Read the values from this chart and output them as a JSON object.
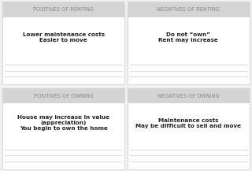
{
  "bg_color": "#f0f0f0",
  "cell_bg": "#ffffff",
  "header_bg": "#d4d4d4",
  "header_text_color": "#888888",
  "body_text_color": "#222222",
  "line_color": "#cccccc",
  "headers": [
    [
      "POSITIVES OF RENTING",
      "NEGATIVES OF RENTING"
    ],
    [
      "POSITIVES OF OWNING",
      "NEGATIVES OF OWNING"
    ]
  ],
  "content": [
    [
      "Lower maintenance costs\nEasier to move",
      "Do not “own”\nRent may increase"
    ],
    [
      "House may increase in value\n(appreciation)\nYou begin to own the home",
      "Maintenance costs\nMay be difficult to sell and move"
    ]
  ],
  "line_rows": 3,
  "figsize": [
    3.2,
    2.17
  ],
  "dpi": 100
}
